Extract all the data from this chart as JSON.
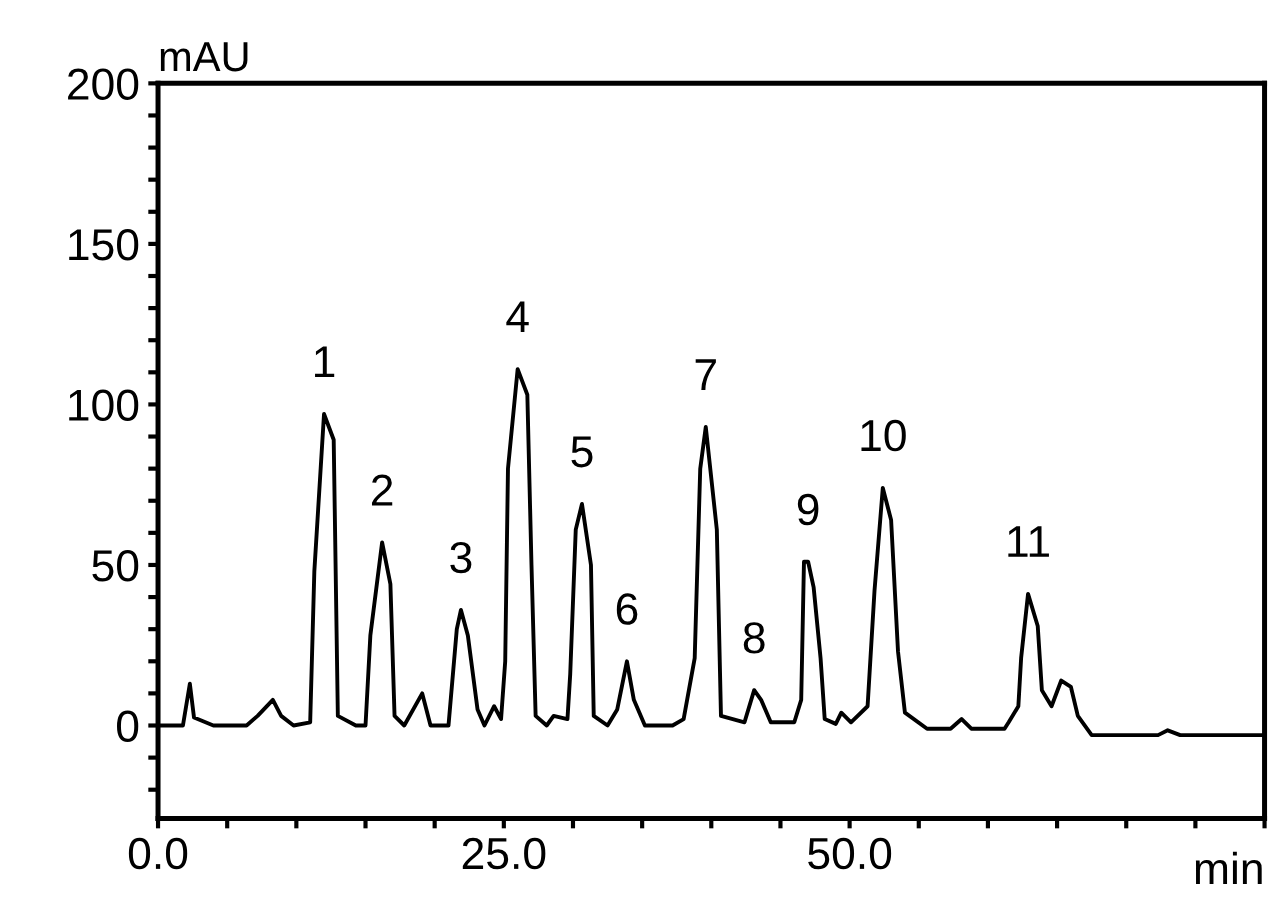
{
  "chart_data": {
    "type": "line",
    "xlabel": "min",
    "ylabel": "mAU",
    "series": [
      {
        "color": "#000000",
        "x": [
          0,
          1.8,
          2.3,
          2.6,
          4.0,
          6.4,
          7.2,
          8.3,
          8.9,
          9.8,
          11.0,
          11.3,
          12.0,
          12.7,
          13.0,
          14.3,
          15.0,
          15.35,
          16.2,
          16.8,
          17.1,
          17.8,
          19.1,
          19.7,
          21.0,
          21.6,
          21.9,
          22.4,
          23.1,
          23.6,
          24.3,
          24.8,
          25.1,
          25.3,
          26.0,
          26.7,
          27.0,
          27.3,
          28.1,
          28.6,
          29.6,
          29.8,
          30.2,
          30.65,
          31.3,
          31.5,
          32.5,
          33.2,
          33.9,
          34.4,
          35.2,
          37.2,
          38.0,
          38.8,
          39.2,
          39.6,
          40.4,
          40.7,
          42.4,
          43.1,
          43.6,
          44.3,
          46.0,
          46.5,
          46.7,
          47.0,
          47.4,
          47.9,
          48.2,
          49.0,
          49.4,
          50.1,
          51.3,
          51.8,
          52.4,
          53.0,
          53.5,
          54.0,
          55.6,
          57.3,
          58.1,
          58.8,
          61.2,
          61.5,
          62.2,
          62.4,
          62.9,
          63.6,
          63.9,
          64.6,
          65.3,
          66.0,
          66.5,
          67.5,
          72.3,
          73.0,
          73.9,
          80
        ],
        "values": [
          0,
          0,
          13,
          2.5,
          0,
          0,
          3,
          8,
          3,
          0,
          1,
          48,
          97,
          89,
          3,
          0,
          0,
          28,
          57,
          44,
          3,
          0,
          10,
          0,
          0,
          30,
          36,
          28,
          5,
          0,
          6,
          2,
          20,
          80,
          111,
          103,
          50,
          3,
          0,
          3,
          2,
          16,
          61,
          69,
          50,
          3,
          0,
          5,
          20,
          8,
          0,
          0,
          2,
          21,
          80,
          93,
          61,
          3,
          1,
          11,
          8,
          1,
          1,
          8,
          51,
          51,
          43,
          21,
          2,
          0.5,
          4,
          1,
          6,
          42,
          74,
          64,
          23,
          4,
          -1,
          -1,
          2,
          -1,
          -1,
          1,
          6,
          21,
          41,
          31,
          11,
          6,
          14,
          12,
          3,
          -3,
          -3,
          -1.5,
          -3,
          -3
        ]
      }
    ],
    "xlim": [
      0,
      80
    ],
    "ylim": [
      -29,
      200
    ],
    "xticks": [
      {
        "value": 0,
        "label": "0.0"
      },
      {
        "value": 5,
        "label": null
      },
      {
        "value": 10,
        "label": null
      },
      {
        "value": 15,
        "label": null
      },
      {
        "value": 20,
        "label": null
      },
      {
        "value": 25,
        "label": "25.0"
      },
      {
        "value": 30,
        "label": null
      },
      {
        "value": 35,
        "label": null
      },
      {
        "value": 40,
        "label": null
      },
      {
        "value": 45,
        "label": null
      },
      {
        "value": 50,
        "label": "50.0"
      },
      {
        "value": 55,
        "label": null
      },
      {
        "value": 60,
        "label": null
      },
      {
        "value": 65,
        "label": null
      },
      {
        "value": 70,
        "label": null
      },
      {
        "value": 75,
        "label": null
      },
      {
        "value": 80,
        "label": null
      }
    ],
    "yticks": [
      {
        "value": -20,
        "label": null
      },
      {
        "value": -10,
        "label": null
      },
      0,
      {
        "value": 10,
        "label": null
      },
      {
        "value": 20,
        "label": null
      },
      {
        "value": 30,
        "label": null
      },
      {
        "value": 40,
        "label": null
      },
      50,
      {
        "value": 60,
        "label": null
      },
      {
        "value": 70,
        "label": null
      },
      {
        "value": 80,
        "label": null
      },
      {
        "value": 90,
        "label": null
      },
      100,
      {
        "value": 110,
        "label": null
      },
      {
        "value": 120,
        "label": null
      },
      {
        "value": 130,
        "label": null
      },
      {
        "value": 140,
        "label": null
      },
      150,
      {
        "value": 160,
        "label": null
      },
      {
        "value": 170,
        "label": null
      },
      {
        "value": 180,
        "label": null
      },
      {
        "value": 190,
        "label": null
      },
      200
    ],
    "annotations": [
      {
        "text": "1",
        "x": 12.0,
        "y": 97
      },
      {
        "text": "2",
        "x": 16.2,
        "y": 57
      },
      {
        "text": "3",
        "x": 21.9,
        "y": 36
      },
      {
        "text": "4",
        "x": 26.0,
        "y": 111
      },
      {
        "text": "5",
        "x": 30.65,
        "y": 69
      },
      {
        "text": "6",
        "x": 33.9,
        "y": 20
      },
      {
        "text": "7",
        "x": 39.6,
        "y": 93
      },
      {
        "text": "8",
        "x": 43.1,
        "y": 11
      },
      {
        "text": "9",
        "x": 47.0,
        "y": 51
      },
      {
        "text": "10",
        "x": 52.4,
        "y": 74
      },
      {
        "text": "11",
        "x": 62.9,
        "y": 41
      }
    ],
    "grid": false
  }
}
